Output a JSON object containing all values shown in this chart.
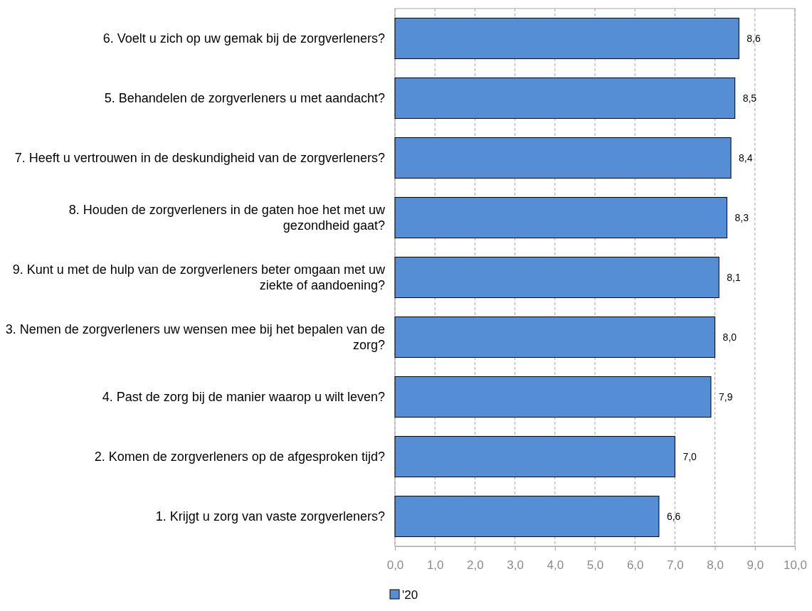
{
  "chart_data": {
    "type": "bar",
    "orientation": "horizontal",
    "categories": [
      "6. Voelt u zich op uw gemak bij de zorgverleners?",
      "5. Behandelen de zorgverleners u met aandacht?",
      "7. Heeft u vertrouwen in de deskundigheid van de zorgverleners?",
      "8. Houden de zorgverleners in de gaten hoe het met uw gezondheid gaat?",
      "9. Kunt u met de hulp van de zorgverleners beter omgaan met uw ziekte of aandoening?",
      "3. Nemen de zorgverleners uw wensen mee bij het bepalen van de zorg?",
      "4. Past de zorg bij de manier waarop u wilt leven?",
      "2. Komen de zorgverleners op de afgesproken tijd?",
      "1. Krijgt u zorg van vaste zorgverleners?"
    ],
    "series": [
      {
        "name": "'20",
        "color": "#558ed5",
        "values": [
          8.6,
          8.5,
          8.4,
          8.3,
          8.1,
          8.0,
          7.9,
          7.0,
          6.6
        ],
        "value_labels": [
          "8,6",
          "8,5",
          "8,4",
          "8,3",
          "8,1",
          "8,0",
          "7,9",
          "7,0",
          "6,6"
        ]
      }
    ],
    "xlim": [
      0,
      10
    ],
    "xticks": [
      {
        "value": 0,
        "label": "0,0"
      },
      {
        "value": 1,
        "label": "1,0"
      },
      {
        "value": 2,
        "label": "2,0"
      },
      {
        "value": 3,
        "label": "3,0"
      },
      {
        "value": 4,
        "label": "4,0"
      },
      {
        "value": 5,
        "label": "5,0"
      },
      {
        "value": 6,
        "label": "6,0"
      },
      {
        "value": 7,
        "label": "7,0"
      },
      {
        "value": 8,
        "label": "8,0"
      },
      {
        "value": 9,
        "label": "9,0"
      },
      {
        "value": 10,
        "label": "10,0"
      }
    ],
    "grid": "x",
    "legend": "bottom"
  }
}
